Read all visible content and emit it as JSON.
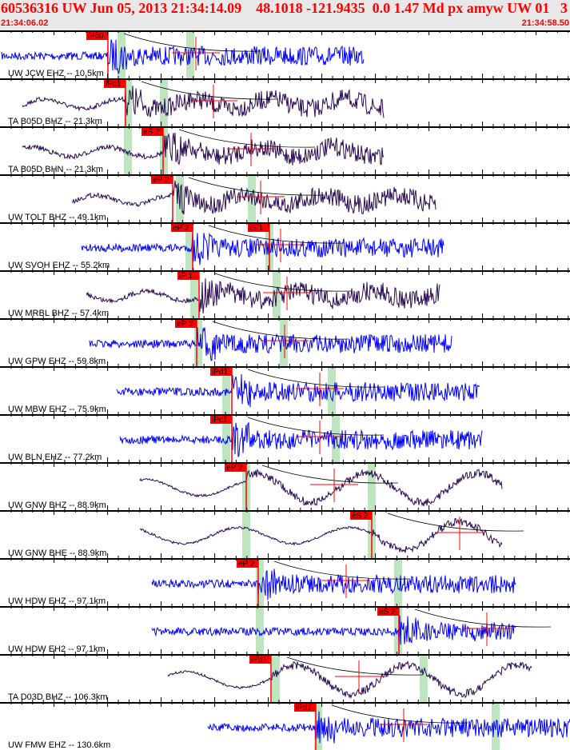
{
  "header": {
    "title": "60536316 UW Jun 05, 2013 21:34:14.09    48.1018 -121.9435  0.0 1.47 Md px amyw UW 01   3",
    "start_time": "21:34:06.02",
    "end_time": "21:34:58.50"
  },
  "colors": {
    "short_period": "#0000ff",
    "broadband": "#2a0a55",
    "pick": "#ff0000",
    "window": "#bfe5c0",
    "header_bg": "#e8e8e8"
  },
  "traces": [
    {
      "label": "UW JCW EHZ -- 10.5km",
      "picks": [
        "iPc0"
      ]
    },
    {
      "label": "TA B05D BHZ -- 21.3km",
      "picks": [
        "iPc1"
      ]
    },
    {
      "label": "TA B05D BHN -- 21.3km",
      "picks": [
        "eS 2"
      ]
    },
    {
      "label": "UW TOLT BHZ -- 49.1km",
      "picks": [
        "eP 2"
      ]
    },
    {
      "label": "UW SVOH EHZ -- 55.2km",
      "picks": [
        "eP 2",
        "iS 1"
      ]
    },
    {
      "label": "UW MRBL BHZ -- 57.4km",
      "picks": [
        "iP 1"
      ]
    },
    {
      "label": "UW GPW EHZ -- 59.8km",
      "picks": [
        "eP 2"
      ]
    },
    {
      "label": "UW MBW EHZ -- 75.9km",
      "picks": [
        "iPd1"
      ]
    },
    {
      "label": "UW BLN EHZ -- 77.2km",
      "picks": [
        "iPc1"
      ]
    },
    {
      "label": "UW GNW BHZ -- 88.9km",
      "picks": [
        "eP 2"
      ]
    },
    {
      "label": "UW GNW BHE -- 88.9km",
      "picks": [
        "eS 2"
      ]
    },
    {
      "label": "UW HDW EHZ -- 97.1km",
      "picks": [
        "eP 2"
      ]
    },
    {
      "label": "UW HDW EH2 -- 97.1km",
      "picks": [
        "eS 2"
      ]
    },
    {
      "label": "TA D03D BHZ -- 106.3km",
      "picks": [
        "iPd1"
      ]
    },
    {
      "label": "UW FMW EHZ -- 130.6km",
      "picks": [
        "iPd1"
      ]
    }
  ]
}
